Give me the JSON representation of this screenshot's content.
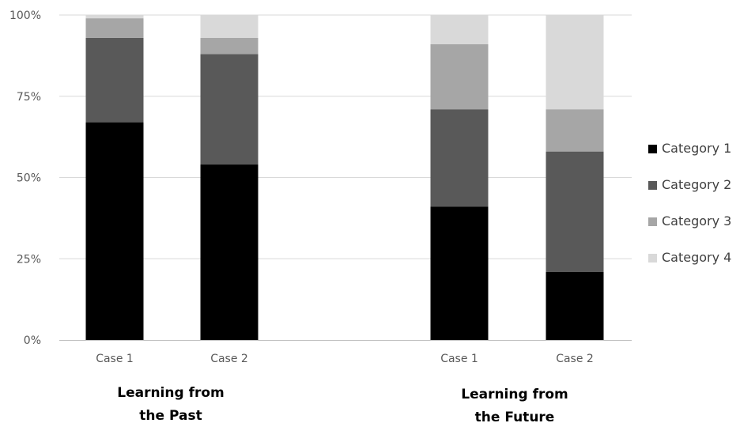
{
  "chart_data": {
    "type": "bar",
    "stacked": true,
    "percent": true,
    "title": "",
    "xlabel": "",
    "ylabel": "",
    "ylim": [
      0,
      100
    ],
    "yticks": [
      "0%",
      "25%",
      "50%",
      "75%",
      "100%"
    ],
    "grid": true,
    "legend_position": "right",
    "groups": [
      {
        "label_lines": [
          "Learning from",
          "the Past"
        ],
        "categories": [
          "Case 1",
          "Case 2"
        ]
      },
      {
        "label_lines": [
          "Learning from",
          "the Future"
        ],
        "categories": [
          "Case 1",
          "Case 2"
        ]
      }
    ],
    "categories": [
      "Case 1",
      "Case 2",
      "Case 1",
      "Case 2"
    ],
    "series": [
      {
        "name": "Category 1",
        "color": "#000000",
        "values": [
          67,
          54,
          41,
          21
        ]
      },
      {
        "name": "Category 2",
        "color": "#595959",
        "values": [
          26,
          34,
          30,
          37
        ]
      },
      {
        "name": "Category 3",
        "color": "#a6a6a6",
        "values": [
          6,
          5,
          20,
          13
        ]
      },
      {
        "name": "Category 4",
        "color": "#d9d9d9",
        "values": [
          1,
          7,
          9,
          29
        ]
      }
    ]
  }
}
